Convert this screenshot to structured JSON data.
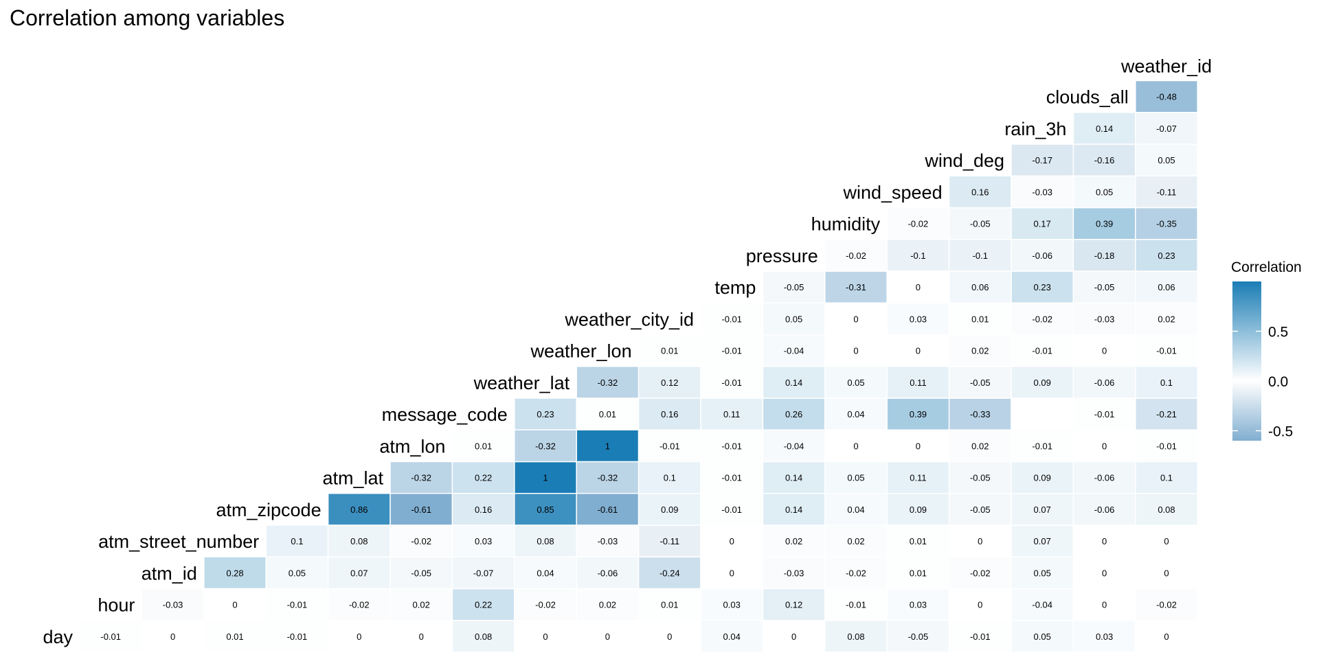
{
  "chart_data": {
    "type": "heatmap",
    "title": "Correlation among variables",
    "variables": [
      "day",
      "hour",
      "atm_id",
      "atm_street_number",
      "atm_zipcode",
      "atm_lat",
      "atm_lon",
      "message_code",
      "weather_lat",
      "weather_lon",
      "weather_city_id",
      "temp",
      "pressure",
      "humidity",
      "wind_speed",
      "wind_deg",
      "rain_3h",
      "clouds_all",
      "weather_id"
    ],
    "correlations": [
      [
        -0.01,
        0,
        0.01,
        -0.01,
        0,
        0,
        0.08,
        0,
        0,
        0,
        0.04,
        0,
        0.08,
        -0.05,
        -0.01,
        0.05,
        0.03,
        0
      ],
      [
        -0.03,
        0,
        -0.01,
        -0.02,
        0.02,
        0.22,
        -0.02,
        0.02,
        0.01,
        0.03,
        0.12,
        -0.01,
        0.03,
        0,
        -0.04,
        0,
        -0.02
      ],
      [
        0.28,
        0.05,
        0.07,
        -0.05,
        -0.07,
        0.04,
        -0.06,
        -0.24,
        0,
        -0.03,
        -0.02,
        0.01,
        -0.02,
        0.05,
        0,
        0
      ],
      [
        0.1,
        0.08,
        -0.02,
        0.03,
        0.08,
        -0.03,
        -0.11,
        0,
        0.02,
        0.02,
        0.01,
        0,
        0.07,
        0,
        0
      ],
      [
        0.86,
        -0.61,
        0.16,
        0.85,
        -0.61,
        0.09,
        -0.01,
        0.14,
        0.04,
        0.09,
        -0.05,
        0.07,
        -0.06,
        0.08
      ],
      [
        -0.32,
        0.22,
        1,
        -0.32,
        0.1,
        -0.01,
        0.14,
        0.05,
        0.11,
        -0.05,
        0.09,
        -0.06,
        0.1
      ],
      [
        0.01,
        -0.32,
        1,
        -0.01,
        -0.01,
        -0.04,
        0,
        0,
        0.02,
        -0.01,
        0,
        -0.01
      ],
      [
        0.23,
        0.01,
        0.16,
        0.11,
        0.26,
        0.04,
        0.39,
        -0.33,
        null,
        -0.01,
        -0.21
      ],
      [
        -0.32,
        0.12,
        -0.01,
        0.14,
        0.05,
        0.11,
        -0.05,
        0.09,
        -0.06,
        0.1
      ],
      [
        0.01,
        -0.01,
        -0.04,
        0,
        0,
        0.02,
        -0.01,
        0,
        -0.01
      ],
      [
        -0.01,
        0.05,
        0,
        0.03,
        0.01,
        -0.02,
        -0.03,
        0.02
      ],
      [
        -0.05,
        -0.31,
        0,
        0.06,
        0.23,
        -0.05,
        0.06
      ],
      [
        -0.02,
        -0.1,
        -0.1,
        -0.06,
        -0.18,
        0.23
      ],
      [
        -0.02,
        -0.05,
        0.17,
        0.39,
        -0.35
      ],
      [
        0.16,
        -0.03,
        0.05,
        -0.11
      ],
      [
        -0.17,
        -0.16,
        0.05
      ],
      [
        0.14,
        -0.07
      ],
      [
        -0.48
      ]
    ],
    "legend": {
      "title": "Correlation",
      "ticks": [
        {
          "label": "0.5",
          "value": 0.5
        },
        {
          "label": "0.0",
          "value": 0.0
        },
        {
          "label": "-0.5",
          "value": -0.5
        }
      ],
      "range": [
        -0.6,
        1.0
      ],
      "placement": "right"
    },
    "colors": {
      "low": "#80aed0",
      "mid": "#ffffff",
      "high": "#1b7db5",
      "na": "#ffffff"
    }
  }
}
